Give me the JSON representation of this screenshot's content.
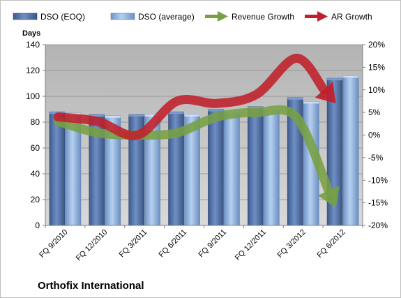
{
  "chart_data": {
    "type": "bar",
    "company": "Orthofix International",
    "categories": [
      "FQ 9/2010",
      "FQ 12/2010",
      "FQ 3/2011",
      "FQ 6/2011",
      "FQ 9/2011",
      "FQ 12/2011",
      "FQ 3/2012",
      "FQ 6/2012"
    ],
    "series": [
      {
        "name": "DSO (EOQ)",
        "axis": "left",
        "kind": "bar",
        "color": "#4f6fa8",
        "values": [
          88,
          86,
          86,
          88,
          90,
          92,
          99,
          114
        ]
      },
      {
        "name": "DSO (average)",
        "axis": "left",
        "kind": "bar",
        "color": "#8fb4e3",
        "values": [
          87,
          85,
          86,
          86,
          89,
          91,
          96,
          116
        ]
      },
      {
        "name": "Revenue Growth",
        "axis": "right",
        "kind": "arrow",
        "color": "#77a043",
        "values": [
          3,
          0.5,
          0,
          0.5,
          4,
          5,
          4,
          -16
        ]
      },
      {
        "name": "AR Growth",
        "axis": "right",
        "kind": "arrow",
        "color": "#c0202a",
        "values": [
          4,
          3,
          0,
          7.5,
          7,
          9,
          17,
          7
        ]
      }
    ],
    "y_left": {
      "title": "Days",
      "ticks": [
        "0",
        "20",
        "40",
        "60",
        "80",
        "100",
        "120",
        "140"
      ],
      "range": [
        0,
        140
      ]
    },
    "y_right": {
      "ticks": [
        "-20%",
        "-15%",
        "-10%",
        "-5%",
        "0%",
        "5%",
        "10%",
        "15%",
        "20%"
      ],
      "range": [
        -20,
        20
      ]
    },
    "legend": {
      "position": "top"
    },
    "plot_background": "#c0c0c0",
    "grid": true
  }
}
